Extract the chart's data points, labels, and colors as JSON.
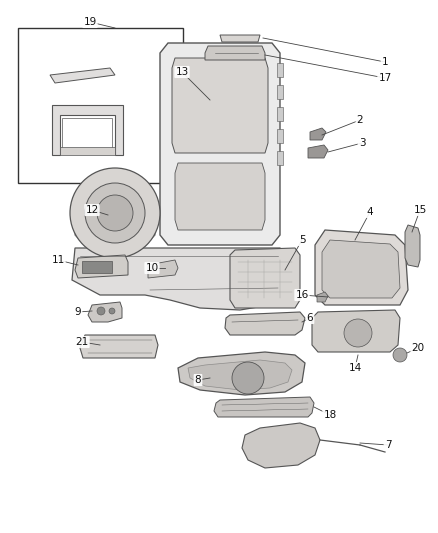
{
  "background_color": "#ffffff",
  "fig_width": 4.38,
  "fig_height": 5.33,
  "dpi": 100,
  "line_color": "#555555",
  "label_color": "#111111",
  "part_fill": "#f5f5f5",
  "part_edge": "#555555"
}
